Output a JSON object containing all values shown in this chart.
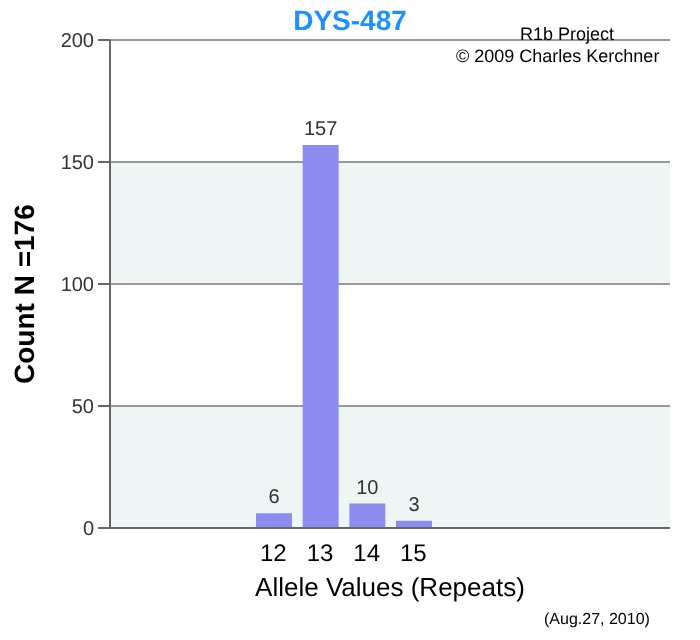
{
  "chart_data": {
    "type": "bar",
    "title": "DYS-487",
    "xlabel": "Allele Values (Repeats)",
    "ylabel": "Count N =176",
    "annotations": [
      "R1b Project",
      "© 2009 Charles Kerchner",
      "(Aug.27, 2010)"
    ],
    "categories": [
      null,
      null,
      null,
      "12",
      "13",
      "14",
      "15",
      null,
      null,
      null,
      null,
      null
    ],
    "values": [
      null,
      null,
      null,
      6,
      157,
      10,
      3,
      null,
      null,
      null,
      null,
      null
    ],
    "color": "#8c8cf0",
    "ylim": [
      0,
      200
    ],
    "yticks": [
      0,
      50,
      100,
      150,
      200
    ],
    "grid": "y",
    "data_labels": true
  }
}
